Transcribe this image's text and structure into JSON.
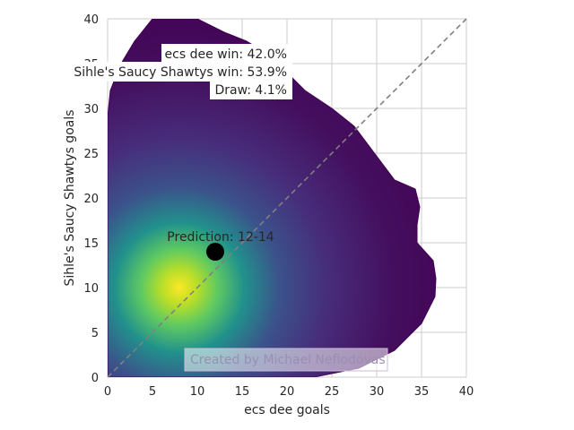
{
  "chart_data": {
    "type": "heatmap",
    "subtype": "bivariate-density",
    "title": "",
    "xlabel": "ecs dee goals",
    "ylabel": "Sihle's Saucy Shawtys goals",
    "xlim": [
      0,
      40
    ],
    "ylim": [
      0,
      40
    ],
    "x_ticks": [
      "0",
      "5",
      "10",
      "15",
      "20",
      "25",
      "30",
      "35",
      "40"
    ],
    "y_ticks": [
      "0",
      "5",
      "10",
      "15",
      "20",
      "25",
      "30",
      "35",
      "40"
    ],
    "grid": true,
    "colormap": "viridis",
    "density_peak": {
      "x": 8,
      "y": 10
    },
    "density_outline": [
      [
        0,
        0
      ],
      [
        10,
        0
      ],
      [
        20,
        0
      ],
      [
        23,
        0
      ],
      [
        28,
        1
      ],
      [
        32,
        3
      ],
      [
        35,
        6
      ],
      [
        36.5,
        9
      ],
      [
        36.6,
        11
      ],
      [
        36.3,
        13
      ],
      [
        34.5,
        15
      ],
      [
        34.5,
        17
      ],
      [
        34.8,
        19
      ],
      [
        34.3,
        21
      ],
      [
        32,
        22
      ],
      [
        30.5,
        24
      ],
      [
        29,
        26
      ],
      [
        27.5,
        28
      ],
      [
        25,
        30
      ],
      [
        22,
        32
      ],
      [
        20,
        34
      ],
      [
        18,
        36
      ],
      [
        15.5,
        37.5
      ],
      [
        13,
        38.5
      ],
      [
        10,
        40
      ],
      [
        5,
        40
      ],
      [
        3,
        37.5
      ],
      [
        1.5,
        35
      ],
      [
        0.3,
        32
      ],
      [
        0,
        29
      ],
      [
        0,
        0
      ]
    ],
    "diagonal": {
      "from": [
        0,
        0
      ],
      "to": [
        40,
        40
      ],
      "style": "dashed",
      "color": "#808080"
    },
    "prediction_point": {
      "x": 12,
      "y": 14,
      "label": "Prediction: 12-14"
    },
    "annotations": {
      "team_a_win": "ecs dee win: 42.0%",
      "team_b_win": "Sihle's Saucy Shawtys win: 53.9%",
      "draw": "Draw: 4.1%"
    },
    "watermark": "Created by Michael Nefiodovas"
  }
}
